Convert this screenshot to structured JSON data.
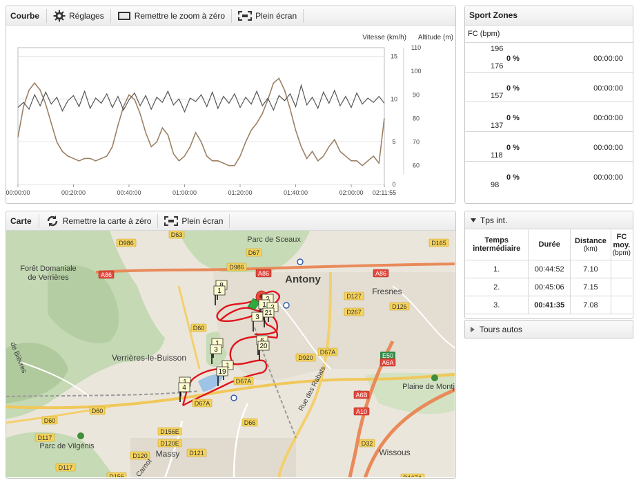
{
  "chart_panel": {
    "title": "Courbe",
    "settings_label": "Réglages",
    "reset_zoom_label": "Remettre le zoom à zéro",
    "fullscreen_label": "Plein écran"
  },
  "map_panel": {
    "title": "Carte",
    "reset_map_label": "Remettre la carte à zéro",
    "fullscreen_label": "Plein écran",
    "places": [
      "Parc de Sceaux",
      "Antony",
      "Fresnes",
      "Forêt Domaniale",
      "de Verrières",
      "Verrières-le-Buisson",
      "Plaine de Montj",
      "Parc de Vilgénis",
      "Massy",
      "Wissous",
      "Rue des Rabats",
      "Carnot",
      "de Bièvres"
    ],
    "roads": [
      "D986",
      "D63",
      "D165",
      "D67",
      "D986",
      "A86",
      "A86",
      "A86",
      "D127",
      "D126",
      "D267",
      "D60",
      "D920",
      "D67A",
      "E50",
      "A6A",
      "D67A",
      "A6B",
      "A10",
      "D67A",
      "D60",
      "D60",
      "D117",
      "D156E",
      "D120E",
      "D66",
      "D32",
      "D120",
      "D121",
      "D117",
      "D156",
      "D167A"
    ],
    "markers": [
      "8",
      "1",
      "2",
      "1",
      "2",
      "3",
      "21",
      "6",
      "20",
      "1",
      "3",
      "1",
      "19",
      "1",
      "4"
    ]
  },
  "sport_zones": {
    "title": "Sport Zones",
    "unit_label": "FC (bpm)",
    "zones": [
      {
        "top": "196",
        "bottom": "176",
        "pct": "0 %",
        "time": "00:00:00"
      },
      {
        "top": "",
        "bottom": "157",
        "pct": "0 %",
        "time": "00:00:00"
      },
      {
        "top": "",
        "bottom": "137",
        "pct": "0 %",
        "time": "00:00:00"
      },
      {
        "top": "",
        "bottom": "118",
        "pct": "0 %",
        "time": "00:00:00"
      },
      {
        "top": "",
        "bottom": "98",
        "pct": "0 %",
        "time": "00:00:00"
      }
    ]
  },
  "laps_panel": {
    "title": "Tps int.",
    "headers": {
      "lap": "Temps intermédiaire",
      "duration": "Durée",
      "distance": "Distance",
      "distance_unit": "(km)",
      "hr": "FC moy.",
      "hr_unit": "(bpm)"
    },
    "rows": [
      {
        "n": "1.",
        "duration": "00:44:52",
        "distance": "7.10",
        "hr": ""
      },
      {
        "n": "2.",
        "duration": "00:45:06",
        "distance": "7.15",
        "hr": ""
      },
      {
        "n": "3.",
        "duration": "00:41:35",
        "distance": "7.08",
        "hr": ""
      }
    ],
    "auto_laps_label": "Tours autos"
  },
  "chart_data": {
    "type": "line",
    "x_tick_labels": [
      "00:00:00",
      "00:20:00",
      "00:40:00",
      "01:00:00",
      "01:20:00",
      "01:40:00",
      "02:00:00",
      "02:11:55"
    ],
    "x_ticks_minutes": [
      0,
      20,
      40,
      60,
      80,
      100,
      120,
      131.92
    ],
    "x_range_minutes": [
      0,
      131.92
    ],
    "right_axes": [
      {
        "name": "Vitesse (km/h)",
        "range": [
          0,
          16
        ],
        "ticks": [
          0,
          5,
          10,
          15
        ]
      },
      {
        "name": "Altitude (m)",
        "range": [
          52,
          110
        ],
        "ticks": [
          60,
          70,
          80,
          90,
          100,
          110
        ]
      }
    ],
    "grid": true,
    "series": [
      {
        "name": "Vitesse (km/h)",
        "color": "#555555",
        "axis": 0,
        "x": [
          0,
          2,
          4,
          6,
          8,
          10,
          12,
          14,
          16,
          18,
          20,
          22,
          24,
          26,
          28,
          30,
          32,
          34,
          36,
          38,
          40,
          42,
          44,
          46,
          48,
          50,
          52,
          54,
          56,
          58,
          60,
          62,
          64,
          66,
          68,
          70,
          72,
          74,
          76,
          78,
          80,
          82,
          84,
          86,
          88,
          90,
          92,
          94,
          96,
          98,
          100,
          102,
          104,
          106,
          108,
          110,
          112,
          114,
          116,
          118,
          120,
          122,
          124,
          126,
          128,
          130,
          131.9
        ],
        "y": [
          9,
          9.6,
          8.8,
          10.5,
          9.2,
          10.8,
          9.4,
          10.2,
          8.6,
          9.8,
          10.4,
          9.1,
          10.9,
          8.9,
          10.1,
          9.5,
          10.6,
          9.0,
          10.3,
          8.7,
          9.9,
          10.7,
          9.2,
          10.4,
          8.8,
          10.2,
          9.6,
          10.9,
          9.3,
          10.0,
          8.5,
          10.1,
          9.7,
          10.5,
          9.1,
          10.8,
          8.9,
          10.3,
          9.5,
          10.6,
          9.0,
          10.2,
          9.4,
          10.9,
          9.2,
          10.1,
          8.7,
          10.4,
          9.8,
          10.6,
          9.1,
          11.6,
          9.3,
          10.2,
          8.9,
          10.8,
          9.5,
          11.0,
          9.2,
          10.3,
          9.0,
          10.7,
          9.4,
          10.1,
          9.6,
          10.3,
          9.5
        ]
      },
      {
        "name": "Altitude (m)",
        "color": "#9c8064",
        "axis": 1,
        "x": [
          0,
          2,
          4,
          6,
          8,
          10,
          12,
          14,
          16,
          18,
          20,
          22,
          24,
          26,
          28,
          30,
          32,
          34,
          36,
          38,
          40,
          42,
          44,
          46,
          48,
          50,
          52,
          54,
          56,
          58,
          60,
          62,
          64,
          66,
          68,
          70,
          72,
          74,
          76,
          78,
          80,
          82,
          84,
          86,
          88,
          90,
          92,
          94,
          96,
          98,
          100,
          102,
          104,
          106,
          108,
          110,
          112,
          114,
          116,
          118,
          120,
          122,
          124,
          126,
          128,
          130,
          131.9
        ],
        "y": [
          72,
          85,
          92,
          95,
          92,
          86,
          78,
          70,
          66,
          64,
          63,
          62,
          63,
          63,
          62,
          63,
          64,
          68,
          77,
          85,
          90,
          88,
          82,
          74,
          68,
          70,
          76,
          73,
          65,
          62,
          64,
          68,
          74,
          70,
          64,
          62,
          62,
          61,
          60,
          60,
          64,
          70,
          75,
          78,
          82,
          88,
          95,
          97,
          92,
          84,
          75,
          68,
          63,
          66,
          62,
          64,
          68,
          71,
          66,
          64,
          62,
          62,
          60,
          62,
          64,
          61,
          80
        ]
      }
    ]
  }
}
